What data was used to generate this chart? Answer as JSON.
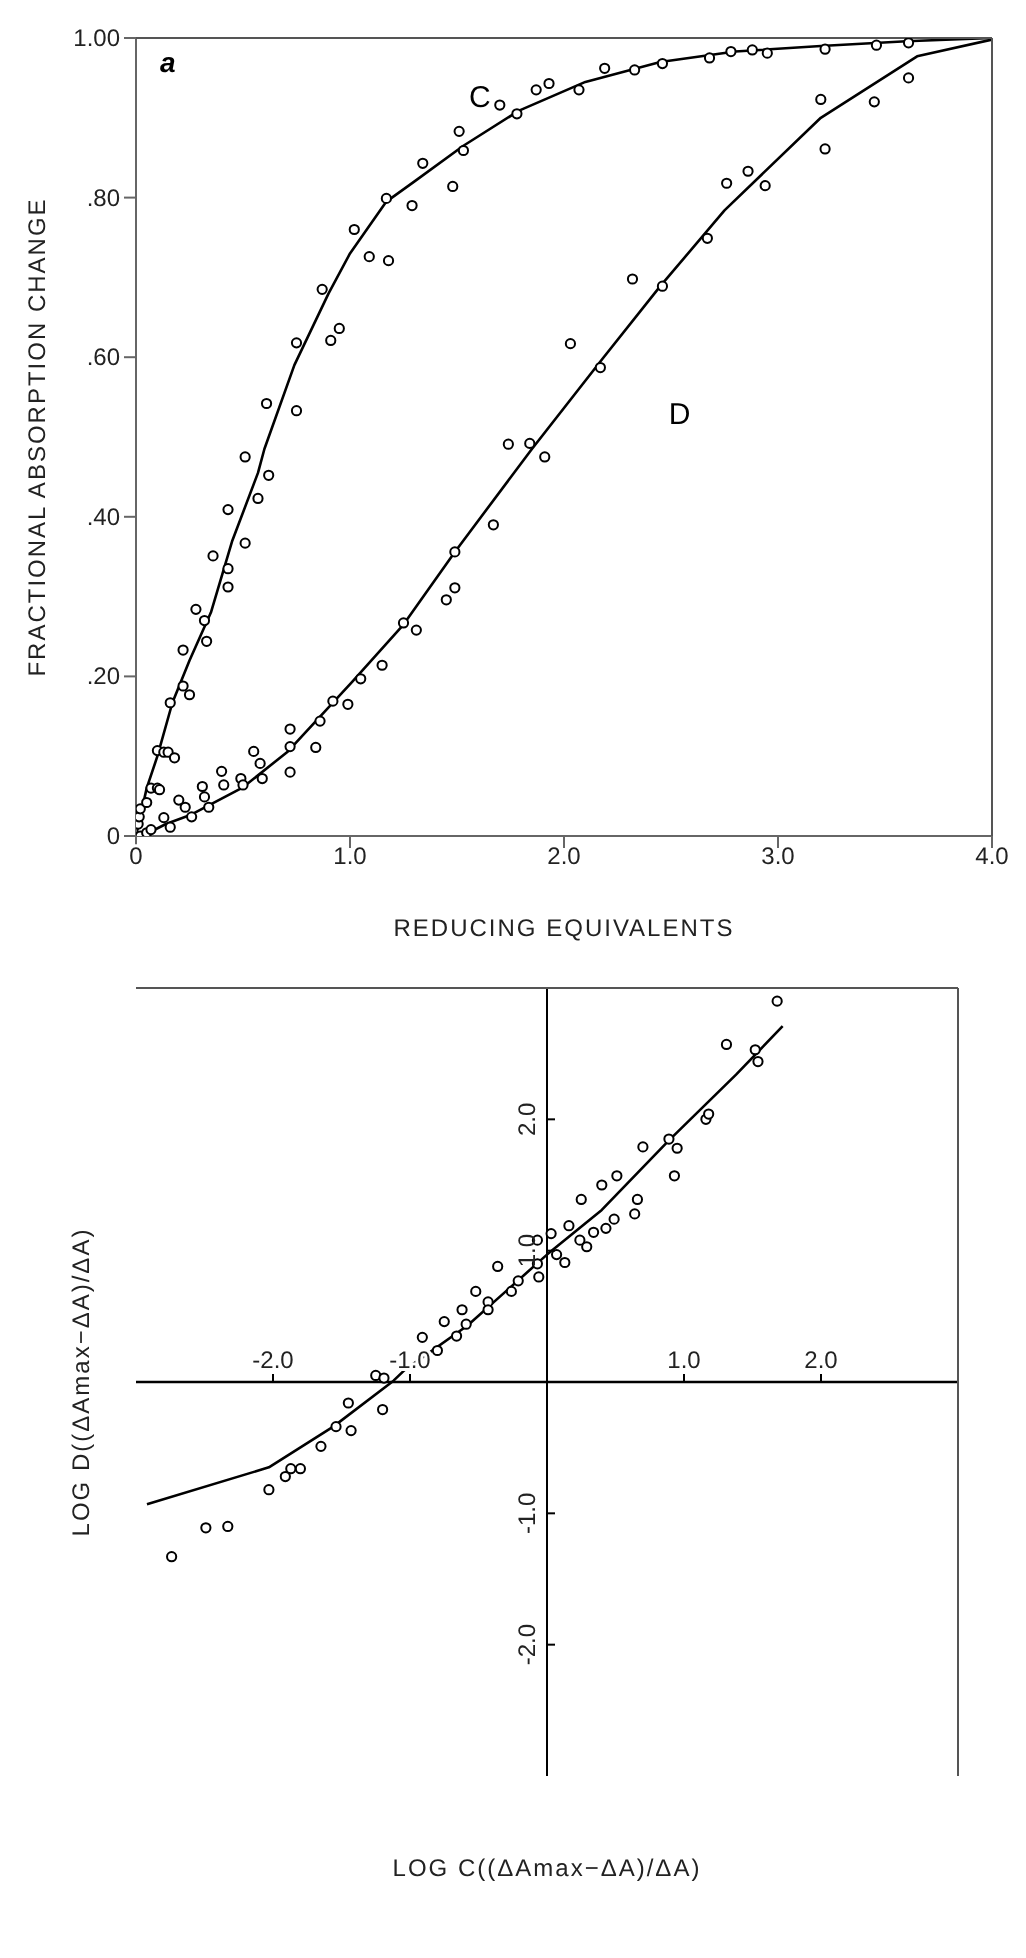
{
  "chart_data": [
    {
      "type": "scatter",
      "ylabel": "FRACTIONAL ABSORPTION CHANGE",
      "xlabel": "REDUCING EQUIVALENTS",
      "annotations": [
        "a"
      ],
      "xlim": [
        0,
        4
      ],
      "xticks": [
        {
          "value": 0,
          "label": "0"
        },
        {
          "value": 1,
          "label": "1.0"
        },
        {
          "value": 2,
          "label": "2.0"
        },
        {
          "value": 3,
          "label": "3.0"
        },
        {
          "value": 4,
          "label": "4.0"
        }
      ],
      "ylim": [
        0,
        1
      ],
      "yticks": [
        {
          "value": 0,
          "label": "0"
        },
        {
          "value": 0.2,
          "label": ".20"
        },
        {
          "value": 0.4,
          "label": ".40"
        },
        {
          "value": 0.6,
          "label": ".60"
        },
        {
          "value": 0.8,
          "label": ".80"
        },
        {
          "value": 1,
          "label": "1.00"
        }
      ],
      "grid": false,
      "marker": "circle",
      "series": [
        {
          "name": "C",
          "color": "#000000",
          "x": [
            0.01,
            0.015,
            0.02,
            0.05,
            0.07,
            0.1,
            0.11,
            0.1,
            0.13,
            0.15,
            0.18,
            0.16,
            0.22,
            0.25,
            0.22,
            0.28,
            0.32,
            0.33,
            0.36,
            0.43,
            0.43,
            0.43,
            0.51,
            0.57,
            0.51,
            0.62,
            0.61,
            0.75,
            0.75,
            0.87,
            0.91,
            0.95,
            1.02,
            1.09,
            1.18,
            1.17,
            1.29,
            1.34,
            1.48,
            1.51,
            1.53,
            1.7,
            1.78,
            1.87,
            1.93,
            2.07,
            2.19,
            2.33,
            2.46,
            2.68,
            2.78,
            2.88,
            2.95,
            3.22,
            3.46,
            3.61
          ],
          "values": [
            0.015,
            0.024,
            0.034,
            0.042,
            0.06,
            0.06,
            0.058,
            0.107,
            0.105,
            0.105,
            0.098,
            0.167,
            0.188,
            0.177,
            0.233,
            0.284,
            0.27,
            0.244,
            0.351,
            0.312,
            0.335,
            0.409,
            0.367,
            0.423,
            0.475,
            0.452,
            0.542,
            0.533,
            0.618,
            0.685,
            0.621,
            0.636,
            0.76,
            0.726,
            0.721,
            0.799,
            0.79,
            0.843,
            0.814,
            0.883,
            0.859,
            0.916,
            0.905,
            0.935,
            0.943,
            0.935,
            0.962,
            0.96,
            0.968,
            0.975,
            0.983,
            0.985,
            0.981,
            0.986,
            0.991,
            0.994
          ]
        },
        {
          "name": "D",
          "color": "#000000",
          "x": [
            0.02,
            0.05,
            0.07,
            0.13,
            0.16,
            0.2,
            0.23,
            0.26,
            0.31,
            0.32,
            0.34,
            0.4,
            0.41,
            0.49,
            0.5,
            0.55,
            0.58,
            0.59,
            0.72,
            0.72,
            0.72,
            0.84,
            0.86,
            0.92,
            0.99,
            1.05,
            1.15,
            1.25,
            1.31,
            1.45,
            1.49,
            1.49,
            1.67,
            1.74,
            1.84,
            1.91,
            2.03,
            2.17,
            2.32,
            2.46,
            2.67,
            2.76,
            2.86,
            2.94,
            3.2,
            3.22,
            3.45,
            3.61
          ],
          "values": [
            0,
            0.004,
            0.008,
            0.023,
            0.011,
            0.045,
            0.036,
            0.024,
            0.062,
            0.049,
            0.036,
            0.081,
            0.064,
            0.072,
            0.064,
            0.106,
            0.091,
            0.072,
            0.134,
            0.08,
            0.112,
            0.111,
            0.144,
            0.169,
            0.165,
            0.197,
            0.214,
            0.267,
            0.258,
            0.296,
            0.311,
            0.356,
            0.39,
            0.491,
            0.492,
            0.475,
            0.617,
            0.587,
            0.698,
            0.689,
            0.749,
            0.818,
            0.833,
            0.815,
            0.923,
            0.861,
            0.92,
            0.95
          ]
        },
        {
          "type": "line",
          "color": "#000000",
          "marker": "none",
          "x": [
            0,
            0.05,
            0.1,
            0.17,
            0.25,
            0.35,
            0.45,
            0.57,
            0.6,
            0.74,
            0.9,
            1.0,
            1.17,
            1.3,
            1.53,
            1.79,
            2.1,
            2.45,
            2.8,
            3.2,
            3.6,
            4.0
          ],
          "values": [
            0,
            0.06,
            0.1,
            0.167,
            0.22,
            0.28,
            0.37,
            0.455,
            0.485,
            0.59,
            0.68,
            0.73,
            0.795,
            0.82,
            0.865,
            0.909,
            0.945,
            0.97,
            0.983,
            0.99,
            0.996,
            1.0
          ]
        },
        {
          "type": "line",
          "color": "#000000",
          "marker": "none",
          "x": [
            0.03,
            0.14,
            0.26,
            0.5,
            0.71,
            1.01,
            1.25,
            1.49,
            1.85,
            2.18,
            2.45,
            2.75,
            3.2,
            3.65,
            4.0
          ],
          "values": [
            0,
            0.015,
            0.027,
            0.061,
            0.106,
            0.193,
            0.265,
            0.356,
            0.485,
            0.598,
            0.689,
            0.784,
            0.9,
            0.977,
            0.998
          ]
        }
      ]
    },
    {
      "type": "scatter",
      "xlabel": "LOG C((ΔAmax−ΔA)/ΔA)",
      "ylabel": "LOG D((ΔAmax−ΔA)/ΔA)",
      "xlim": [
        -3,
        3
      ],
      "xticks": [
        {
          "value": -2,
          "label": "-2.0"
        },
        {
          "value": -1,
          "label": "-1.0"
        },
        {
          "value": 1,
          "label": "1.0"
        },
        {
          "value": 2,
          "label": "2.0"
        }
      ],
      "ylim": [
        -3,
        3
      ],
      "yticks": [
        {
          "value": -2,
          "label": "-2.0"
        },
        {
          "value": -1,
          "label": "-1.0"
        },
        {
          "value": 1,
          "label": "1.0"
        },
        {
          "value": 2,
          "label": "2.0"
        }
      ],
      "grid": false,
      "marker": "circle",
      "series": [
        {
          "color": "#000000",
          "x": [
            1.68,
            1.31,
            1.52,
            1.54,
            1.16,
            1.18,
            0.7,
            0.89,
            0.95,
            0.93,
            0.51,
            0.4,
            0.25,
            0.66,
            0.64,
            0.49,
            0.43,
            0.34,
            0.24,
            0.29,
            0.16,
            0.03,
            0.07,
            0.13,
            -0.07,
            -0.07,
            -0.06,
            -0.36,
            -0.21,
            -0.26,
            -0.52,
            -0.43,
            -0.43,
            -0.62,
            -0.59,
            -0.75,
            -0.66,
            -0.8,
            -0.91,
            -1.25,
            -1.19,
            -1.2,
            -1.45,
            -1.43,
            -1.54,
            -1.65,
            -1.8,
            -1.87,
            -1.91,
            -2.03,
            -2.33,
            -2.49,
            -2.74
          ],
          "values": [
            2.9,
            2.57,
            2.53,
            2.44,
            2.0,
            2.04,
            1.79,
            1.85,
            1.78,
            1.57,
            1.57,
            1.5,
            1.39,
            1.39,
            1.28,
            1.24,
            1.17,
            1.14,
            1.08,
            1.03,
            1.19,
            1.13,
            0.97,
            0.91,
            1.08,
            0.9,
            0.8,
            0.88,
            0.77,
            0.69,
            0.69,
            0.61,
            0.55,
            0.55,
            0.44,
            0.46,
            0.35,
            0.24,
            0.34,
            0.05,
            0.03,
            -0.21,
            -0.16,
            -0.37,
            -0.34,
            -0.49,
            -0.66,
            -0.66,
            -0.72,
            -0.82,
            -1.1,
            -1.11,
            -1.33
          ]
        },
        {
          "type": "line",
          "color": "#000000",
          "marker": "none",
          "x": [
            -2.92,
            -2.03,
            -1.56,
            -1.12,
            -1.04,
            -0.58,
            0,
            0.4,
            0.89,
            1.38,
            1.72
          ],
          "values": [
            -0.93,
            -0.65,
            -0.34,
            0.01,
            0.09,
            0.43,
            0.97,
            1.31,
            1.84,
            2.34,
            2.71
          ]
        }
      ]
    }
  ]
}
